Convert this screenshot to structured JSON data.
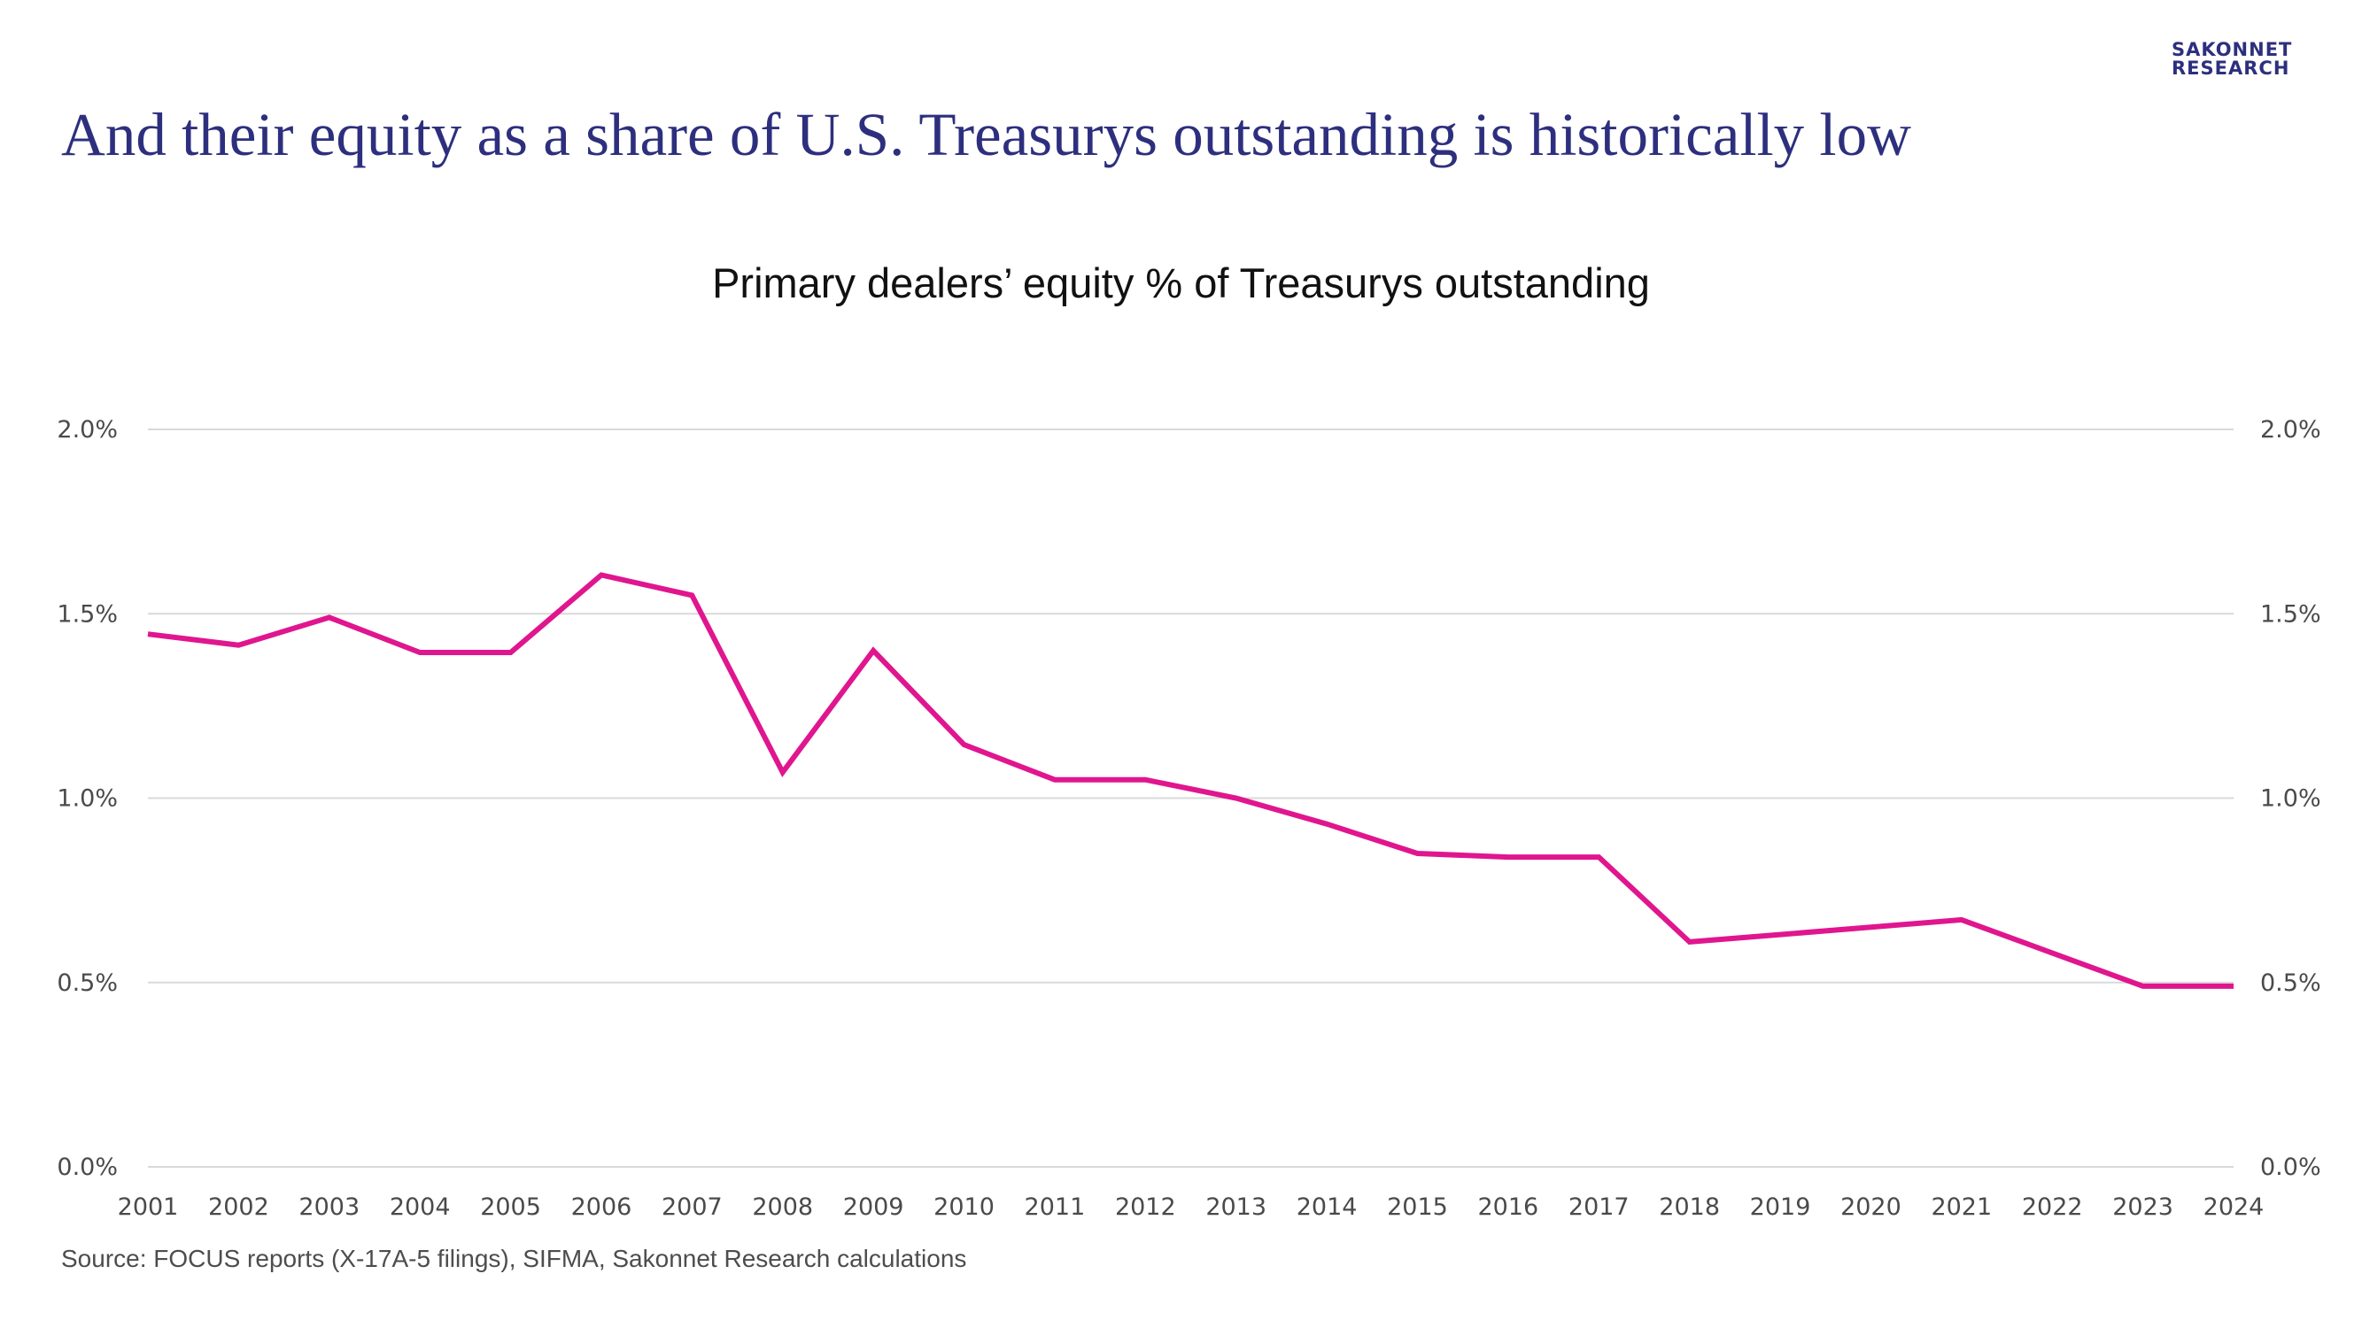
{
  "logo": {
    "line1": "SAKONNET",
    "line2": "RESEARCH"
  },
  "headline": "And their equity as a share of U.S. Treasurys outstanding is historically low",
  "source": "Source: FOCUS reports (X-17A-5 filings), SIFMA, Sakonnet Research calculations",
  "colors": {
    "line": "#e0168f",
    "headline": "#2d2f7e",
    "grid": "#d9d9d9"
  },
  "chart_data": {
    "type": "line",
    "title": "Primary dealers’ equity % of Treasurys outstanding",
    "xlabel": "",
    "ylabel": "",
    "ylim": [
      0,
      0.02
    ],
    "y_ticks": [
      "0.0%",
      "0.5%",
      "1.0%",
      "1.5%",
      "2.0%"
    ],
    "y_tick_values": [
      0,
      0.005,
      0.01,
      0.015,
      0.02
    ],
    "axis_sides": "left and right (mirrored)",
    "grid": true,
    "legend": "none",
    "x": [
      "2001",
      "2002",
      "2003",
      "2004",
      "2005",
      "2006",
      "2007",
      "2008",
      "2009",
      "2010",
      "2011",
      "2012",
      "2013",
      "2014",
      "2015",
      "2016",
      "2017",
      "2018",
      "2019",
      "2020",
      "2021",
      "2022",
      "2023",
      "2024"
    ],
    "series": [
      {
        "values": [
          0.01445,
          0.01415,
          0.0149,
          0.01395,
          0.01395,
          0.01605,
          0.0155,
          0.0107,
          0.014,
          0.01145,
          0.0105,
          0.0105,
          0.01,
          0.0093,
          0.0085,
          0.0084,
          0.0084,
          0.0061,
          0.0063,
          0.0065,
          0.0067,
          0.0058,
          0.0049,
          0.0049
        ]
      }
    ]
  }
}
